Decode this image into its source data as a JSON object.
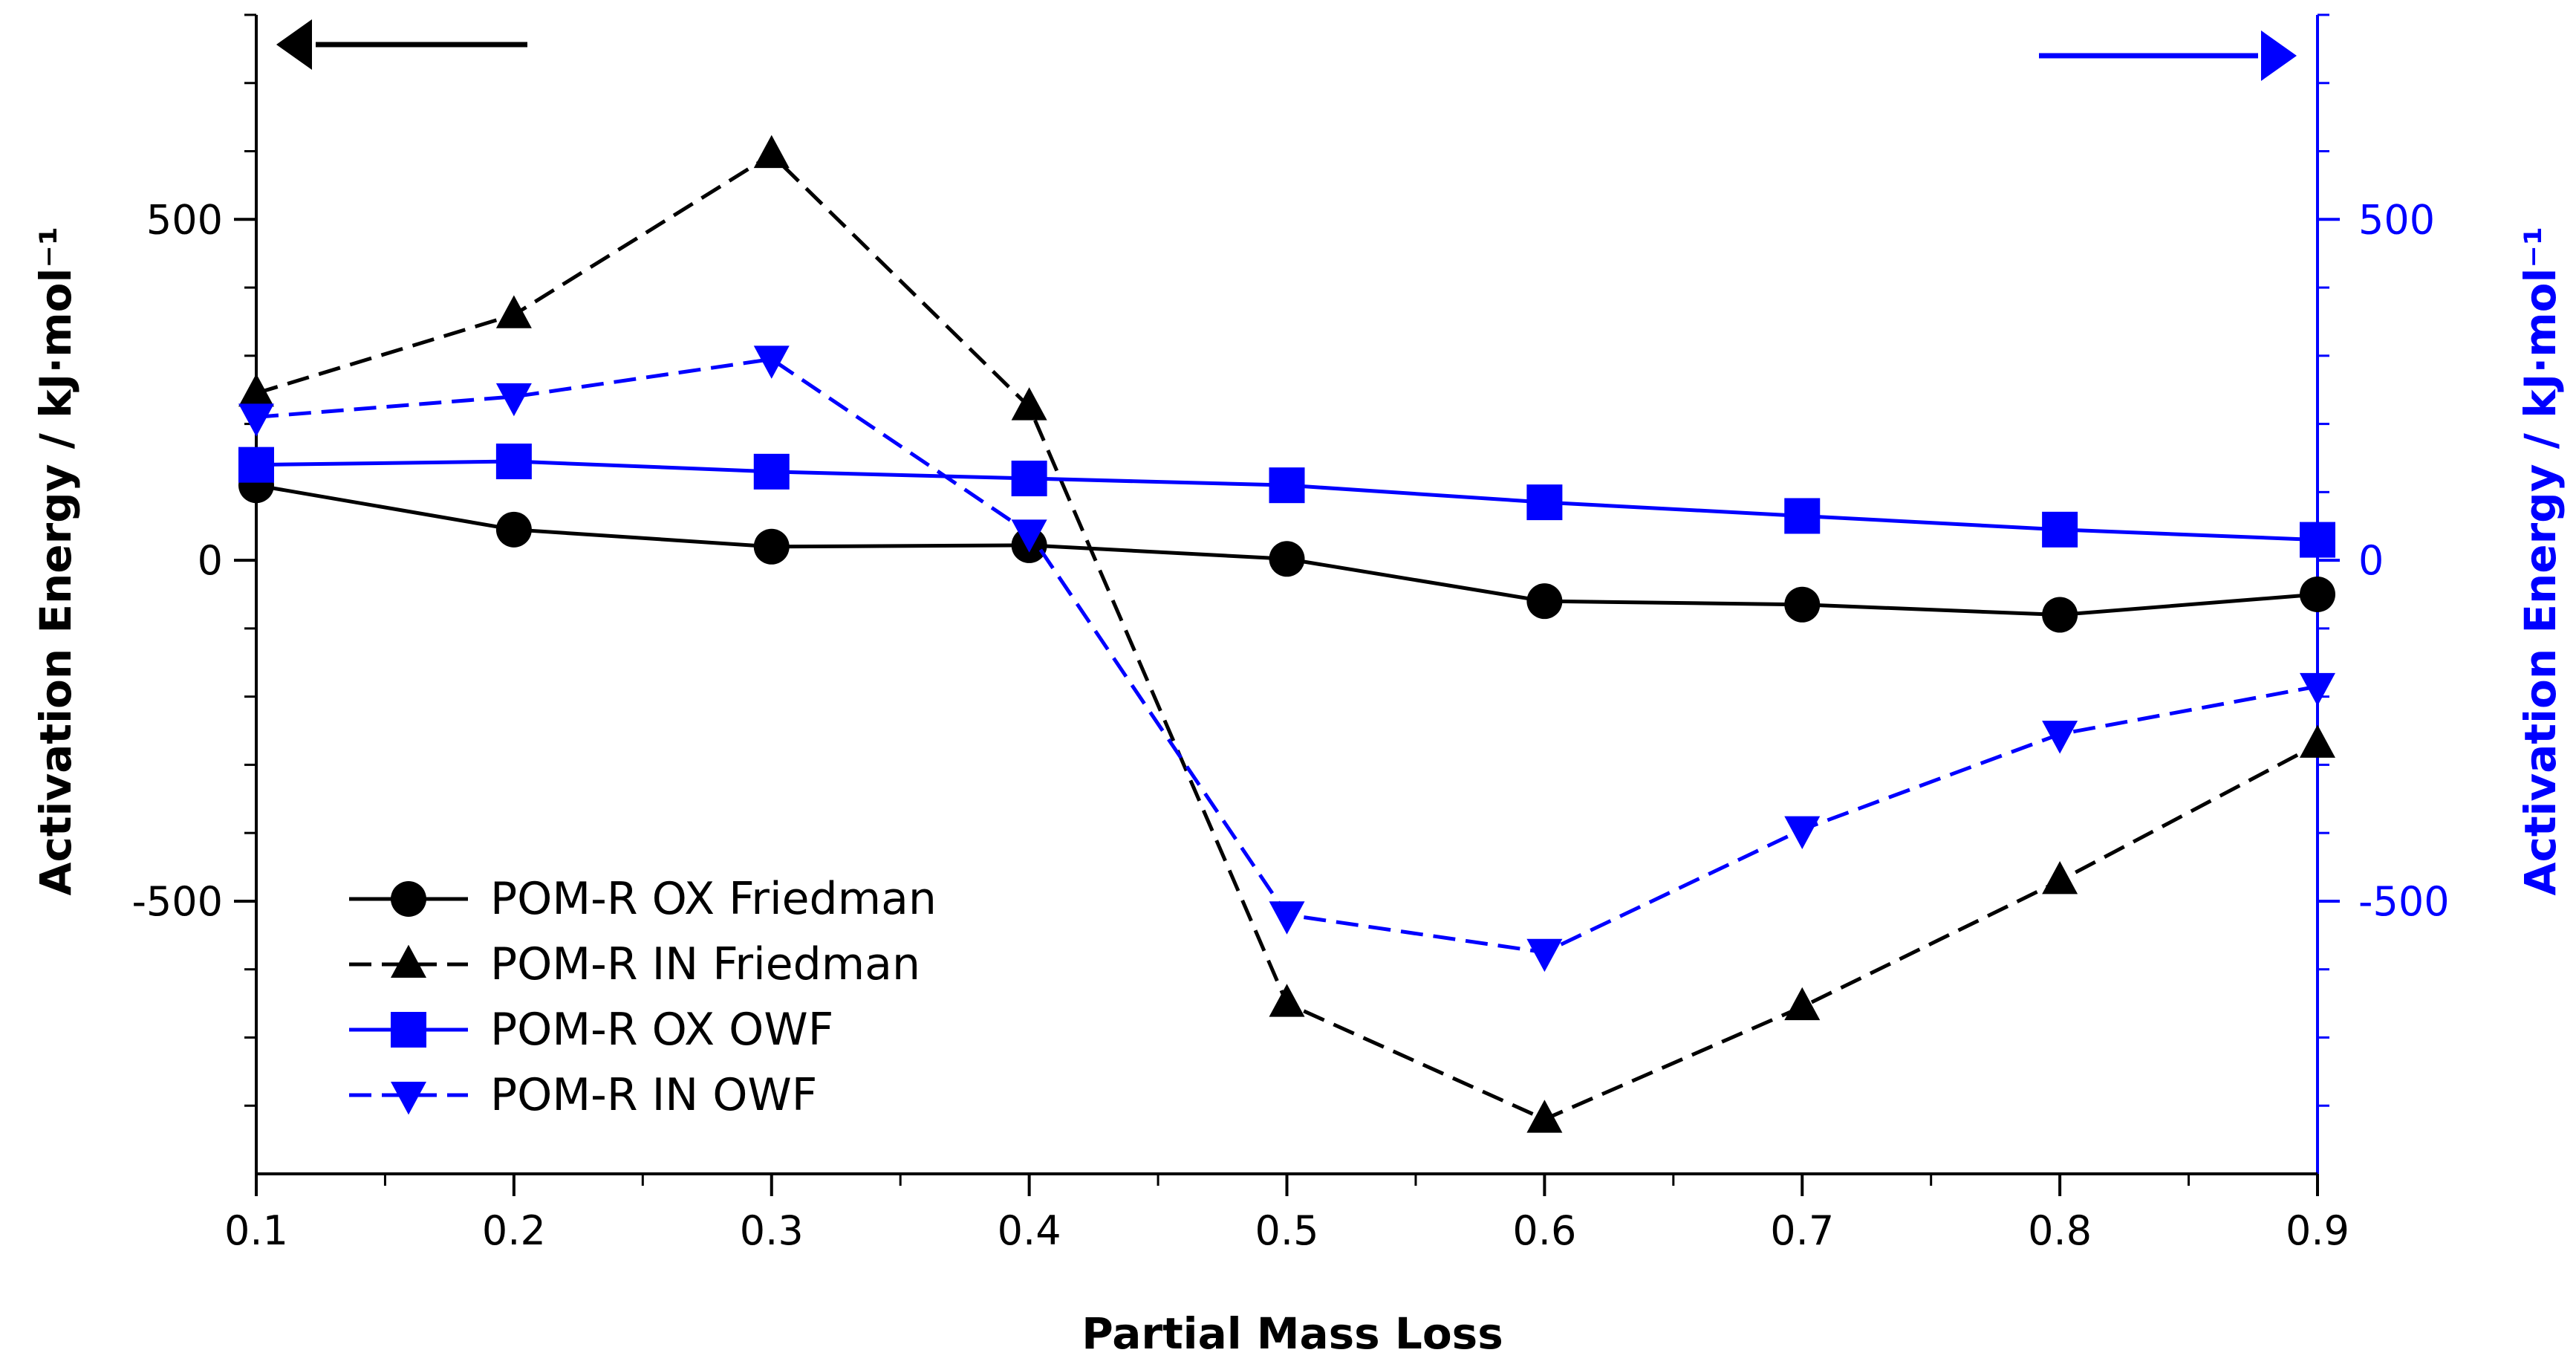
{
  "colors": {
    "black": "#000000",
    "blue": "#0000ff"
  },
  "chart_data": {
    "type": "line",
    "title": "",
    "xlabel": "Partial Mass Loss",
    "ylabel_left": "Activation Energy / kJ·mol⁻¹",
    "ylabel_right": "Activation Energy / kJ·mol⁻¹",
    "xlim": [
      0.1,
      0.9
    ],
    "ylim": [
      -900,
      800
    ],
    "x_ticks": [
      0.1,
      0.2,
      0.3,
      0.4,
      0.5,
      0.6,
      0.7,
      0.8,
      0.9
    ],
    "x_tick_labels": [
      "0.1",
      "0.2",
      "0.3",
      "0.4",
      "0.5",
      "0.6",
      "0.7",
      "0.8",
      "0.9"
    ],
    "y_ticks": [
      -500,
      0,
      500
    ],
    "y_tick_labels_left": [
      "-500",
      "0",
      "500"
    ],
    "y_tick_labels_right": [
      "-500",
      "0",
      "500"
    ],
    "grid": false,
    "legend_position": "bottom-left",
    "x": [
      0.1,
      0.2,
      0.3,
      0.4,
      0.5,
      0.6,
      0.7,
      0.8,
      0.9
    ],
    "series": [
      {
        "name": "POM-R OX Friedman",
        "axis": "left",
        "color": "#000000",
        "dash": "solid",
        "marker": "circle",
        "values": [
          110,
          45,
          20,
          22,
          2,
          -60,
          -65,
          -80,
          -50
        ]
      },
      {
        "name": "POM-R IN Friedman",
        "axis": "left",
        "color": "#000000",
        "dash": "dashed",
        "marker": "triangle-up",
        "values": [
          245,
          360,
          595,
          225,
          -650,
          -820,
          -655,
          -470,
          -270
        ]
      },
      {
        "name": "POM-R OX OWF",
        "axis": "right",
        "color": "#0000ff",
        "dash": "solid",
        "marker": "square",
        "values": [
          140,
          145,
          130,
          120,
          110,
          85,
          65,
          45,
          30
        ]
      },
      {
        "name": "POM-R IN OWF",
        "axis": "right",
        "color": "#0000ff",
        "dash": "dashed",
        "marker": "triangle-down",
        "values": [
          210,
          240,
          295,
          40,
          -520,
          -575,
          -395,
          -255,
          -185
        ]
      }
    ],
    "annotations": [
      {
        "type": "arrow",
        "direction": "left",
        "axis": "left",
        "color": "#000000"
      },
      {
        "type": "arrow",
        "direction": "right",
        "axis": "right",
        "color": "#0000ff"
      }
    ]
  }
}
